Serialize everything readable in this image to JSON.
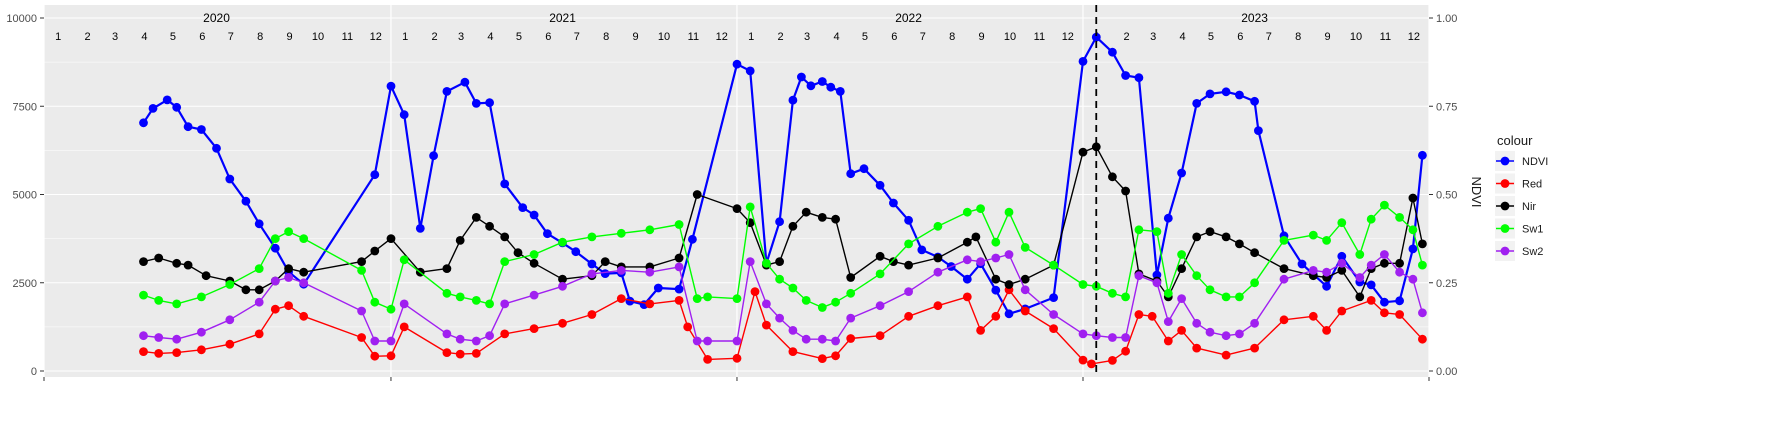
{
  "chart_data": {
    "type": "line",
    "title": "",
    "xlabel": "",
    "ylabel": "",
    "y2label": "NDVI",
    "ylim": [
      0,
      10000
    ],
    "y2lim": [
      0,
      1
    ],
    "yticks": [
      "0",
      "2500",
      "5000",
      "7500",
      "10000"
    ],
    "y2ticks": [
      "0.00",
      "0.25",
      "0.50",
      "0.75",
      "1.00"
    ],
    "xlim": [
      "2020-01-01",
      "2024-01-01"
    ],
    "years": [
      "2020",
      "2021",
      "2022",
      "2023"
    ],
    "months": [
      "1",
      "2",
      "3",
      "4",
      "5",
      "6",
      "7",
      "8",
      "9",
      "10",
      "11",
      "12"
    ],
    "vline": "2023-01-15",
    "grid": true,
    "legend_position": "right",
    "legend_title": "colour",
    "series": [
      {
        "name": "NDVI",
        "color": "#0000FF",
        "x": [
          "2020-04-15",
          "2020-04-25",
          "2020-05-10",
          "2020-05-20",
          "2020-06-01",
          "2020-06-15",
          "2020-07-01",
          "2020-07-15",
          "2020-08-01",
          "2020-08-15",
          "2020-09-01",
          "2020-09-15",
          "2020-10-01",
          "2020-12-15",
          "2021-01-01",
          "2021-01-15",
          "2021-02-01",
          "2021-02-15",
          "2021-03-01",
          "2021-03-20",
          "2021-04-01",
          "2021-04-15",
          "2021-05-01",
          "2021-05-20",
          "2021-06-01",
          "2021-06-15",
          "2021-07-01",
          "2021-07-15",
          "2021-08-01",
          "2021-08-15",
          "2021-09-01",
          "2021-09-10",
          "2021-09-25",
          "2021-10-10",
          "2021-11-01",
          "2021-11-15",
          "2022-01-01",
          "2022-01-15",
          "2022-02-01",
          "2022-02-15",
          "2022-03-01",
          "2022-03-10",
          "2022-03-20",
          "2022-04-01",
          "2022-04-10",
          "2022-04-20",
          "2022-05-01",
          "2022-05-15",
          "2022-06-01",
          "2022-06-15",
          "2022-07-01",
          "2022-07-15",
          "2022-08-01",
          "2022-08-15",
          "2022-09-01",
          "2022-09-15",
          "2022-10-01",
          "2022-10-15",
          "2022-11-01",
          "2022-12-01",
          "2023-01-01",
          "2023-01-15",
          "2023-02-01",
          "2023-02-15",
          "2023-03-01",
          "2023-03-20",
          "2023-04-01",
          "2023-04-15",
          "2023-05-01",
          "2023-05-15",
          "2023-06-01",
          "2023-06-15",
          "2023-07-01",
          "2023-07-05",
          "2023-08-01",
          "2023-08-20",
          "2023-09-01",
          "2023-09-15",
          "2023-10-01",
          "2023-10-20",
          "2023-11-01",
          "2023-11-15",
          "2023-12-01",
          "2023-12-15",
          "2023-12-25"
        ],
        "y": [
          0.703,
          0.744,
          0.768,
          0.747,
          0.692,
          0.684,
          0.631,
          0.544,
          0.481,
          0.417,
          0.348,
          0.281,
          0.246,
          0.556,
          0.807,
          0.726,
          0.404,
          0.61,
          0.792,
          0.818,
          0.758,
          0.76,
          0.53,
          0.463,
          0.442,
          0.389,
          0.363,
          0.338,
          0.303,
          0.276,
          0.278,
          0.198,
          0.188,
          0.235,
          0.232,
          0.373,
          0.869,
          0.85,
          0.305,
          0.423,
          0.767,
          0.833,
          0.808,
          0.82,
          0.804,
          0.792,
          0.559,
          0.573,
          0.526,
          0.476,
          0.427,
          0.343,
          0.323,
          0.296,
          0.26,
          0.304,
          0.229,
          0.162,
          0.176,
          0.208,
          0.877,
          0.946,
          0.903,
          0.837,
          0.831,
          0.272,
          0.433,
          0.561,
          0.758,
          0.785,
          0.791,
          0.782,
          0.764,
          0.681,
          0.383,
          0.303,
          0.274,
          0.24,
          0.325,
          0.252,
          0.244,
          0.195,
          0.199,
          0.346,
          0.611
        ]
      },
      {
        "name": "Red",
        "color": "#FF0000",
        "x": [
          "2020-04-15",
          "2020-05-01",
          "2020-05-20",
          "2020-06-15",
          "2020-07-15",
          "2020-08-15",
          "2020-09-01",
          "2020-09-15",
          "2020-10-01",
          "2020-12-01",
          "2020-12-15",
          "2021-01-01",
          "2021-01-15",
          "2021-03-01",
          "2021-03-15",
          "2021-04-01",
          "2021-05-01",
          "2021-06-01",
          "2021-07-01",
          "2021-08-01",
          "2021-09-01",
          "2021-10-01",
          "2021-11-01",
          "2021-11-10",
          "2021-12-01",
          "2022-01-01",
          "2022-01-20",
          "2022-02-01",
          "2022-03-01",
          "2022-04-01",
          "2022-04-15",
          "2022-05-01",
          "2022-06-01",
          "2022-07-01",
          "2022-08-01",
          "2022-09-01",
          "2022-09-15",
          "2022-10-01",
          "2022-10-15",
          "2022-11-01",
          "2022-12-01",
          "2023-01-01",
          "2023-01-10",
          "2023-02-01",
          "2023-02-15",
          "2023-03-01",
          "2023-03-15",
          "2023-04-01",
          "2023-04-15",
          "2023-05-01",
          "2023-06-01",
          "2023-07-01",
          "2023-08-01",
          "2023-09-01",
          "2023-09-15",
          "2023-10-01",
          "2023-11-01",
          "2023-11-15",
          "2023-12-01",
          "2023-12-25"
        ],
        "y": [
          550,
          500,
          520,
          600,
          760,
          1050,
          1750,
          1850,
          1550,
          950,
          420,
          430,
          1250,
          520,
          480,
          500,
          1050,
          1200,
          1350,
          1600,
          2050,
          1900,
          2000,
          1250,
          330,
          360,
          2250,
          1300,
          550,
          350,
          430,
          920,
          1000,
          1550,
          1850,
          2100,
          1150,
          1550,
          2300,
          1700,
          1200,
          310,
          200,
          300,
          560,
          1600,
          1550,
          850,
          1150,
          650,
          450,
          650,
          1450,
          1550,
          1150,
          1700,
          2000,
          1650,
          1600,
          900
        ]
      },
      {
        "name": "Nir",
        "color": "#000000",
        "x": [
          "2020-04-15",
          "2020-05-01",
          "2020-05-20",
          "2020-06-01",
          "2020-06-20",
          "2020-07-15",
          "2020-08-01",
          "2020-08-15",
          "2020-09-01",
          "2020-09-15",
          "2020-10-01",
          "2020-12-01",
          "2020-12-15",
          "2021-01-01",
          "2021-02-01",
          "2021-03-01",
          "2021-03-15",
          "2021-04-01",
          "2021-04-15",
          "2021-05-01",
          "2021-05-15",
          "2021-06-01",
          "2021-07-01",
          "2021-08-01",
          "2021-08-15",
          "2021-09-01",
          "2021-10-01",
          "2021-11-01",
          "2021-11-20",
          "2022-01-01",
          "2022-01-15",
          "2022-02-01",
          "2022-02-15",
          "2022-03-01",
          "2022-03-15",
          "2022-04-01",
          "2022-04-15",
          "2022-05-01",
          "2022-06-01",
          "2022-06-15",
          "2022-07-01",
          "2022-08-01",
          "2022-09-01",
          "2022-09-10",
          "2022-10-01",
          "2022-10-15",
          "2022-11-01",
          "2022-12-01",
          "2023-01-01",
          "2023-01-15",
          "2023-02-01",
          "2023-02-15",
          "2023-03-01",
          "2023-03-20",
          "2023-04-01",
          "2023-04-15",
          "2023-05-01",
          "2023-05-15",
          "2023-06-01",
          "2023-06-15",
          "2023-07-01",
          "2023-08-01",
          "2023-09-01",
          "2023-09-15",
          "2023-10-01",
          "2023-10-20",
          "2023-11-01",
          "2023-11-15",
          "2023-12-01",
          "2023-12-15",
          "2023-12-25"
        ],
        "y": [
          3100,
          3200,
          3050,
          3000,
          2700,
          2550,
          2300,
          2300,
          2550,
          2900,
          2800,
          3100,
          3400,
          3750,
          2800,
          2900,
          3700,
          4350,
          4100,
          3800,
          3350,
          3050,
          2600,
          2700,
          3100,
          2950,
          2950,
          3200,
          5000,
          4600,
          4200,
          3000,
          3100,
          4100,
          4500,
          4350,
          4300,
          2650,
          3250,
          3100,
          3000,
          3200,
          3650,
          3800,
          2600,
          2450,
          2600,
          3000,
          6200,
          6350,
          5500,
          5100,
          2750,
          2550,
          2100,
          2900,
          3800,
          3950,
          3800,
          3600,
          3350,
          2900,
          2700,
          2650,
          2850,
          2100,
          2900,
          3050,
          3050,
          4900,
          3600
        ]
      },
      {
        "name": "Sw1",
        "color": "#00FF00",
        "x": [
          "2020-04-15",
          "2020-05-01",
          "2020-05-20",
          "2020-06-15",
          "2020-07-15",
          "2020-08-15",
          "2020-09-01",
          "2020-09-15",
          "2020-10-01",
          "2020-12-01",
          "2020-12-15",
          "2021-01-01",
          "2021-01-15",
          "2021-03-01",
          "2021-03-15",
          "2021-04-01",
          "2021-04-15",
          "2021-05-01",
          "2021-06-01",
          "2021-07-01",
          "2021-08-01",
          "2021-09-01",
          "2021-10-01",
          "2021-11-01",
          "2021-11-20",
          "2021-12-01",
          "2022-01-01",
          "2022-01-15",
          "2022-02-01",
          "2022-02-15",
          "2022-03-01",
          "2022-03-15",
          "2022-04-01",
          "2022-04-15",
          "2022-05-01",
          "2022-06-01",
          "2022-07-01",
          "2022-08-01",
          "2022-09-01",
          "2022-09-15",
          "2022-10-01",
          "2022-10-15",
          "2022-11-01",
          "2022-12-01",
          "2023-01-01",
          "2023-01-15",
          "2023-02-01",
          "2023-02-15",
          "2023-03-01",
          "2023-03-20",
          "2023-04-01",
          "2023-04-15",
          "2023-05-01",
          "2023-05-15",
          "2023-06-01",
          "2023-06-15",
          "2023-07-01",
          "2023-08-01",
          "2023-09-01",
          "2023-09-15",
          "2023-10-01",
          "2023-10-20",
          "2023-11-01",
          "2023-11-15",
          "2023-12-01",
          "2023-12-15",
          "2023-12-25"
        ],
        "y": [
          2150,
          2000,
          1900,
          2100,
          2450,
          2900,
          3750,
          3950,
          3750,
          2850,
          1950,
          1750,
          3150,
          2200,
          2100,
          2000,
          1900,
          3100,
          3300,
          3650,
          3800,
          3900,
          4000,
          4150,
          2050,
          2100,
          2050,
          4650,
          3050,
          2600,
          2350,
          2000,
          1800,
          1950,
          2200,
          2750,
          3600,
          4100,
          4500,
          4600,
          3650,
          4500,
          3500,
          3000,
          2450,
          2400,
          2200,
          2100,
          4000,
          3950,
          2200,
          3300,
          2700,
          2300,
          2100,
          2100,
          2500,
          3700,
          3850,
          3700,
          4200,
          3300,
          4300,
          4700,
          4350,
          4000,
          3000
        ]
      },
      {
        "name": "Sw2",
        "color": "#A020F0",
        "x": [
          "2020-04-15",
          "2020-05-01",
          "2020-05-20",
          "2020-06-15",
          "2020-07-15",
          "2020-08-15",
          "2020-09-01",
          "2020-09-15",
          "2020-10-01",
          "2020-12-01",
          "2020-12-15",
          "2021-01-01",
          "2021-01-15",
          "2021-03-01",
          "2021-03-15",
          "2021-04-01",
          "2021-04-15",
          "2021-05-01",
          "2021-06-01",
          "2021-07-01",
          "2021-08-01",
          "2021-09-01",
          "2021-10-01",
          "2021-11-01",
          "2021-11-20",
          "2021-12-01",
          "2022-01-01",
          "2022-01-15",
          "2022-02-01",
          "2022-02-15",
          "2022-03-01",
          "2022-03-15",
          "2022-04-01",
          "2022-04-15",
          "2022-05-01",
          "2022-06-01",
          "2022-07-01",
          "2022-08-01",
          "2022-09-01",
          "2022-09-15",
          "2022-10-01",
          "2022-10-15",
          "2022-11-01",
          "2022-12-01",
          "2023-01-01",
          "2023-01-15",
          "2023-02-01",
          "2023-02-15",
          "2023-03-01",
          "2023-03-20",
          "2023-04-01",
          "2023-04-15",
          "2023-05-01",
          "2023-05-15",
          "2023-06-01",
          "2023-06-15",
          "2023-07-01",
          "2023-08-01",
          "2023-09-01",
          "2023-09-15",
          "2023-10-01",
          "2023-10-20",
          "2023-11-01",
          "2023-11-15",
          "2023-12-01",
          "2023-12-15",
          "2023-12-25"
        ],
        "y": [
          1000,
          950,
          900,
          1100,
          1450,
          1950,
          2550,
          2650,
          2500,
          1700,
          850,
          850,
          1900,
          1050,
          900,
          850,
          1000,
          1900,
          2150,
          2400,
          2750,
          2850,
          2800,
          2950,
          850,
          850,
          850,
          3100,
          1900,
          1500,
          1150,
          900,
          900,
          850,
          1500,
          1850,
          2250,
          2800,
          3150,
          3100,
          3200,
          3300,
          2300,
          1600,
          1050,
          1000,
          950,
          950,
          2700,
          2500,
          1400,
          2050,
          1350,
          1100,
          1000,
          1050,
          1350,
          2600,
          2850,
          2800,
          3050,
          2650,
          3000,
          3300,
          2800,
          2600,
          1650
        ]
      }
    ]
  }
}
